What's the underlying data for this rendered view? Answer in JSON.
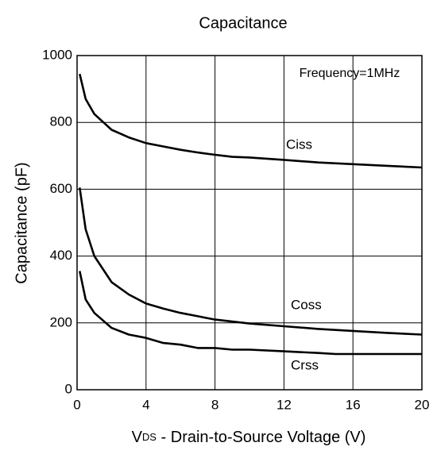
{
  "chart_data": {
    "type": "line",
    "title": "Capacitance",
    "ylabel": "Capacitance (pF)",
    "xlabel": {
      "main": "V",
      "sub": "DS",
      "rest": " - Drain-to-Source Voltage (V)"
    },
    "annotation": "Frequency=1MHz",
    "xlim": [
      0,
      20
    ],
    "xticks": [
      0,
      4,
      8,
      12,
      16,
      20
    ],
    "ylim": [
      0,
      1000
    ],
    "yticks": [
      0,
      200,
      400,
      600,
      800,
      1000
    ],
    "grid": true,
    "series": [
      {
        "name": "Ciss",
        "color": "#000000",
        "x": [
          0.15,
          0.5,
          1,
          2,
          3,
          4,
          5,
          6,
          7,
          8,
          9,
          10,
          12,
          14,
          16,
          18,
          20
        ],
        "values": [
          945,
          870,
          825,
          778,
          755,
          738,
          728,
          718,
          710,
          703,
          697,
          695,
          688,
          680,
          675,
          670,
          665
        ]
      },
      {
        "name": "Coss",
        "color": "#000000",
        "x": [
          0.15,
          0.5,
          1,
          2,
          3,
          4,
          5,
          6,
          7,
          8,
          10,
          12,
          14,
          16,
          18,
          20
        ],
        "values": [
          605,
          480,
          400,
          322,
          285,
          258,
          243,
          230,
          220,
          210,
          198,
          190,
          182,
          176,
          170,
          165
        ]
      },
      {
        "name": "Crss",
        "color": "#000000",
        "x": [
          0.15,
          0.5,
          1,
          2,
          3,
          4,
          5,
          6,
          7,
          8,
          9,
          10,
          12,
          14,
          15,
          16,
          20
        ],
        "values": [
          355,
          270,
          230,
          185,
          165,
          155,
          140,
          135,
          125,
          125,
          120,
          120,
          115,
          110,
          107,
          107,
          107
        ]
      }
    ]
  }
}
